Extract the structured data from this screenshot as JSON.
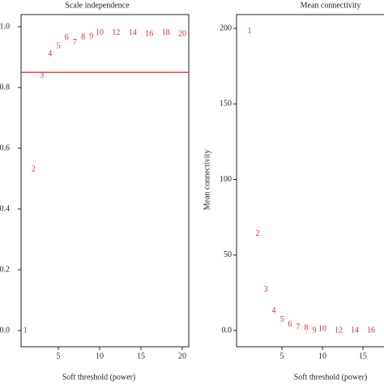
{
  "chart_data": [
    {
      "type": "scatter",
      "title": "Scale independence",
      "x_label": "Soft threshold (power)",
      "x": [
        1,
        2,
        3,
        4,
        5,
        6,
        7,
        8,
        9,
        10,
        12,
        14,
        16,
        18,
        20
      ],
      "values": [
        0.0,
        0.53,
        0.84,
        0.91,
        0.935,
        0.963,
        0.947,
        0.965,
        0.968,
        0.979,
        0.979,
        0.98,
        0.976,
        0.979,
        0.976
      ],
      "color": "#e8262a",
      "hline": 0.85,
      "hline_color": "#e8262a",
      "xlim": [
        0,
        21
      ],
      "ylim": [
        0,
        1.05
      ],
      "xticks": [
        5,
        10,
        15,
        20
      ],
      "yticks": [
        {
          "value": 0,
          "label": "0.0"
        },
        0.2,
        0.4,
        0.6,
        0.8,
        {
          "value": 1,
          "label": "1.0"
        }
      ]
    },
    {
      "type": "scatter",
      "title": "Mean connectivity",
      "x_label": "Soft threshold (power)",
      "y_label": "Mean connectivity",
      "x": [
        1,
        2,
        3,
        4,
        5,
        6,
        7,
        8,
        9,
        10,
        12,
        14,
        16
      ],
      "values": [
        198,
        64,
        27,
        13,
        7,
        4,
        2,
        1.6,
        0,
        1,
        0,
        0,
        0
      ],
      "color": "#e8262a",
      "xlim": [
        0,
        18.3
      ],
      "ylim": [
        0,
        210
      ],
      "xticks": [
        5,
        10,
        15
      ],
      "yticks": [
        {
          "value": 0,
          "label": "0.0"
        },
        50,
        100,
        150,
        200
      ]
    }
  ]
}
